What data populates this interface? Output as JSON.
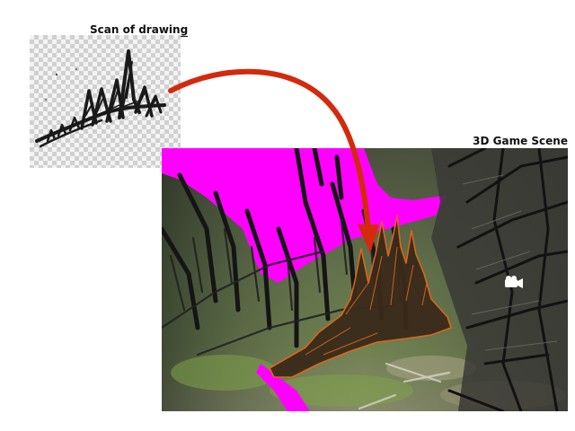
{
  "labels": {
    "scan_title": "Scan of drawing",
    "scene_title": "3D Game Scene"
  },
  "colors": {
    "arrow": "#d42a0c",
    "highlight": "#ff00ff",
    "outline": "#e0661a",
    "sketch": "#1a1a1a"
  },
  "icons": {
    "scene_camera": "camera-icon"
  }
}
